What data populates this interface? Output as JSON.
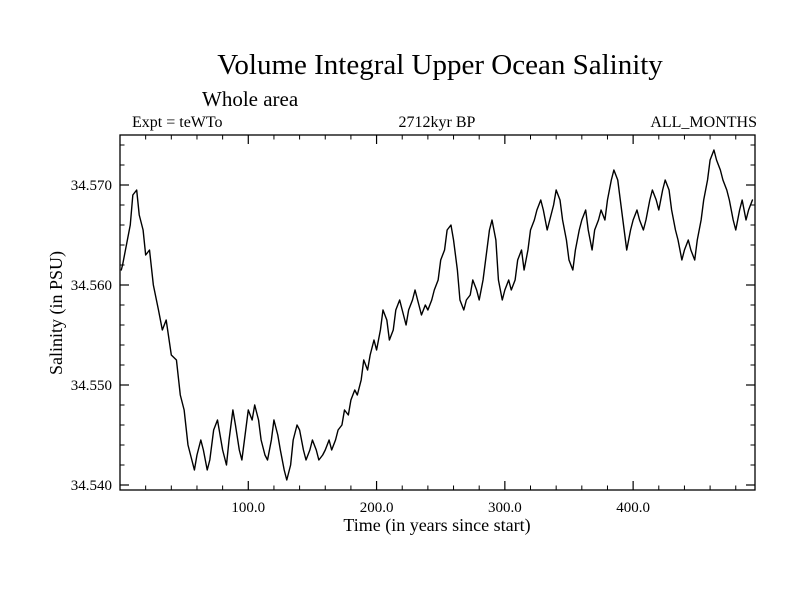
{
  "page": {
    "background": "#ffffff"
  },
  "chart_data": {
    "type": "line",
    "title": "Volume Integral Upper Ocean Salinity",
    "subtitle": "Whole area",
    "annotations": {
      "experiment": "Expt = teWTo",
      "epoch": "2712kyr BP",
      "months": "ALL_MONTHS"
    },
    "xlabel": "Time (in years since start)",
    "ylabel": "Salinity (in PSU)",
    "xlim": [
      0,
      495
    ],
    "ylim": [
      34.5395,
      34.575
    ],
    "x_ticks": [
      100,
      200,
      300,
      400
    ],
    "x_tick_labels": [
      "100.0",
      "200.0",
      "300.0",
      "400.0"
    ],
    "y_ticks": [
      34.54,
      34.55,
      34.56,
      34.57
    ],
    "y_tick_labels": [
      "34.540",
      "34.550",
      "34.560",
      "34.570"
    ],
    "x_minor_step": 20,
    "y_minor_step": 0.002,
    "grid": false,
    "legend": "none",
    "line_color": "#000000",
    "line_width": 1.4,
    "series": [
      {
        "name": "upper_ocean_salinity",
        "points": [
          [
            1,
            34.5615
          ],
          [
            2,
            34.562
          ],
          [
            5,
            34.564
          ],
          [
            8,
            34.566
          ],
          [
            10,
            34.569
          ],
          [
            13,
            34.5695
          ],
          [
            15,
            34.567
          ],
          [
            18,
            34.5655
          ],
          [
            20,
            34.563
          ],
          [
            23,
            34.5635
          ],
          [
            26,
            34.56
          ],
          [
            30,
            34.5575
          ],
          [
            33,
            34.5555
          ],
          [
            36,
            34.5565
          ],
          [
            40,
            34.553
          ],
          [
            44,
            34.5525
          ],
          [
            47,
            34.549
          ],
          [
            50,
            34.5475
          ],
          [
            53,
            34.544
          ],
          [
            56,
            34.5425
          ],
          [
            58,
            34.5415
          ],
          [
            60,
            34.543
          ],
          [
            63,
            34.5445
          ],
          [
            65,
            34.5435
          ],
          [
            68,
            34.5415
          ],
          [
            70,
            34.5425
          ],
          [
            73,
            34.5455
          ],
          [
            76,
            34.5465
          ],
          [
            78,
            34.545
          ],
          [
            80,
            34.5435
          ],
          [
            83,
            34.542
          ],
          [
            85,
            34.5445
          ],
          [
            88,
            34.5475
          ],
          [
            90,
            34.546
          ],
          [
            93,
            34.5435
          ],
          [
            95,
            34.5425
          ],
          [
            98,
            34.5455
          ],
          [
            100,
            34.5475
          ],
          [
            103,
            34.5465
          ],
          [
            105,
            34.548
          ],
          [
            108,
            34.5465
          ],
          [
            110,
            34.5445
          ],
          [
            113,
            34.543
          ],
          [
            115,
            34.5425
          ],
          [
            118,
            34.5445
          ],
          [
            120,
            34.5465
          ],
          [
            123,
            34.545
          ],
          [
            125,
            34.5435
          ],
          [
            128,
            34.5415
          ],
          [
            130,
            34.5405
          ],
          [
            133,
            34.542
          ],
          [
            135,
            34.5445
          ],
          [
            138,
            34.546
          ],
          [
            140,
            34.5455
          ],
          [
            143,
            34.5435
          ],
          [
            145,
            34.5425
          ],
          [
            148,
            34.5435
          ],
          [
            150,
            34.5445
          ],
          [
            153,
            34.5435
          ],
          [
            155,
            34.5425
          ],
          [
            158,
            34.543
          ],
          [
            160,
            34.5435
          ],
          [
            163,
            34.5445
          ],
          [
            165,
            34.5435
          ],
          [
            168,
            34.5445
          ],
          [
            170,
            34.5455
          ],
          [
            173,
            34.546
          ],
          [
            175,
            34.5475
          ],
          [
            178,
            34.547
          ],
          [
            180,
            34.5485
          ],
          [
            183,
            34.5495
          ],
          [
            185,
            34.549
          ],
          [
            188,
            34.5505
          ],
          [
            190,
            34.5525
          ],
          [
            193,
            34.5515
          ],
          [
            195,
            34.553
          ],
          [
            198,
            34.5545
          ],
          [
            200,
            34.5535
          ],
          [
            203,
            34.5555
          ],
          [
            205,
            34.5575
          ],
          [
            208,
            34.5565
          ],
          [
            210,
            34.5545
          ],
          [
            213,
            34.5555
          ],
          [
            215,
            34.5575
          ],
          [
            218,
            34.5585
          ],
          [
            220,
            34.5575
          ],
          [
            223,
            34.556
          ],
          [
            225,
            34.5575
          ],
          [
            228,
            34.5585
          ],
          [
            230,
            34.5595
          ],
          [
            233,
            34.558
          ],
          [
            235,
            34.557
          ],
          [
            238,
            34.558
          ],
          [
            240,
            34.5575
          ],
          [
            243,
            34.5585
          ],
          [
            245,
            34.5595
          ],
          [
            248,
            34.5605
          ],
          [
            250,
            34.5625
          ],
          [
            253,
            34.5635
          ],
          [
            255,
            34.5655
          ],
          [
            258,
            34.566
          ],
          [
            260,
            34.5645
          ],
          [
            263,
            34.5615
          ],
          [
            265,
            34.5585
          ],
          [
            268,
            34.5575
          ],
          [
            270,
            34.5585
          ],
          [
            273,
            34.559
          ],
          [
            275,
            34.5605
          ],
          [
            278,
            34.5595
          ],
          [
            280,
            34.5585
          ],
          [
            283,
            34.5605
          ],
          [
            285,
            34.5625
          ],
          [
            288,
            34.5655
          ],
          [
            290,
            34.5665
          ],
          [
            293,
            34.5645
          ],
          [
            295,
            34.5605
          ],
          [
            298,
            34.5585
          ],
          [
            300,
            34.5595
          ],
          [
            303,
            34.5605
          ],
          [
            305,
            34.5595
          ],
          [
            308,
            34.5605
          ],
          [
            310,
            34.5625
          ],
          [
            313,
            34.5635
          ],
          [
            315,
            34.5615
          ],
          [
            318,
            34.5635
          ],
          [
            320,
            34.5655
          ],
          [
            323,
            34.5665
          ],
          [
            325,
            34.5675
          ],
          [
            328,
            34.5685
          ],
          [
            330,
            34.5675
          ],
          [
            333,
            34.5655
          ],
          [
            335,
            34.5665
          ],
          [
            338,
            34.568
          ],
          [
            340,
            34.5695
          ],
          [
            343,
            34.5685
          ],
          [
            345,
            34.5665
          ],
          [
            348,
            34.5645
          ],
          [
            350,
            34.5625
          ],
          [
            353,
            34.5615
          ],
          [
            355,
            34.5635
          ],
          [
            358,
            34.5655
          ],
          [
            360,
            34.5665
          ],
          [
            363,
            34.5675
          ],
          [
            365,
            34.5655
          ],
          [
            368,
            34.5635
          ],
          [
            370,
            34.5655
          ],
          [
            373,
            34.5665
          ],
          [
            375,
            34.5675
          ],
          [
            378,
            34.5665
          ],
          [
            380,
            34.5685
          ],
          [
            383,
            34.5705
          ],
          [
            385,
            34.5715
          ],
          [
            388,
            34.5705
          ],
          [
            390,
            34.5685
          ],
          [
            393,
            34.5655
          ],
          [
            395,
            34.5635
          ],
          [
            398,
            34.5655
          ],
          [
            400,
            34.5665
          ],
          [
            403,
            34.5675
          ],
          [
            405,
            34.5665
          ],
          [
            408,
            34.5655
          ],
          [
            410,
            34.5665
          ],
          [
            413,
            34.5685
          ],
          [
            415,
            34.5695
          ],
          [
            418,
            34.5685
          ],
          [
            420,
            34.5675
          ],
          [
            423,
            34.5695
          ],
          [
            425,
            34.5705
          ],
          [
            428,
            34.5695
          ],
          [
            430,
            34.5675
          ],
          [
            433,
            34.5655
          ],
          [
            435,
            34.5645
          ],
          [
            438,
            34.5625
          ],
          [
            440,
            34.5635
          ],
          [
            443,
            34.5645
          ],
          [
            445,
            34.5635
          ],
          [
            448,
            34.5625
          ],
          [
            450,
            34.5645
          ],
          [
            453,
            34.5665
          ],
          [
            455,
            34.5685
          ],
          [
            458,
            34.5705
          ],
          [
            460,
            34.5725
          ],
          [
            463,
            34.5735
          ],
          [
            465,
            34.5725
          ],
          [
            468,
            34.5715
          ],
          [
            470,
            34.5705
          ],
          [
            473,
            34.5695
          ],
          [
            475,
            34.5685
          ],
          [
            478,
            34.5665
          ],
          [
            480,
            34.5655
          ],
          [
            483,
            34.5675
          ],
          [
            485,
            34.5685
          ],
          [
            488,
            34.5665
          ],
          [
            490,
            34.5675
          ],
          [
            493,
            34.5685
          ]
        ]
      }
    ]
  }
}
